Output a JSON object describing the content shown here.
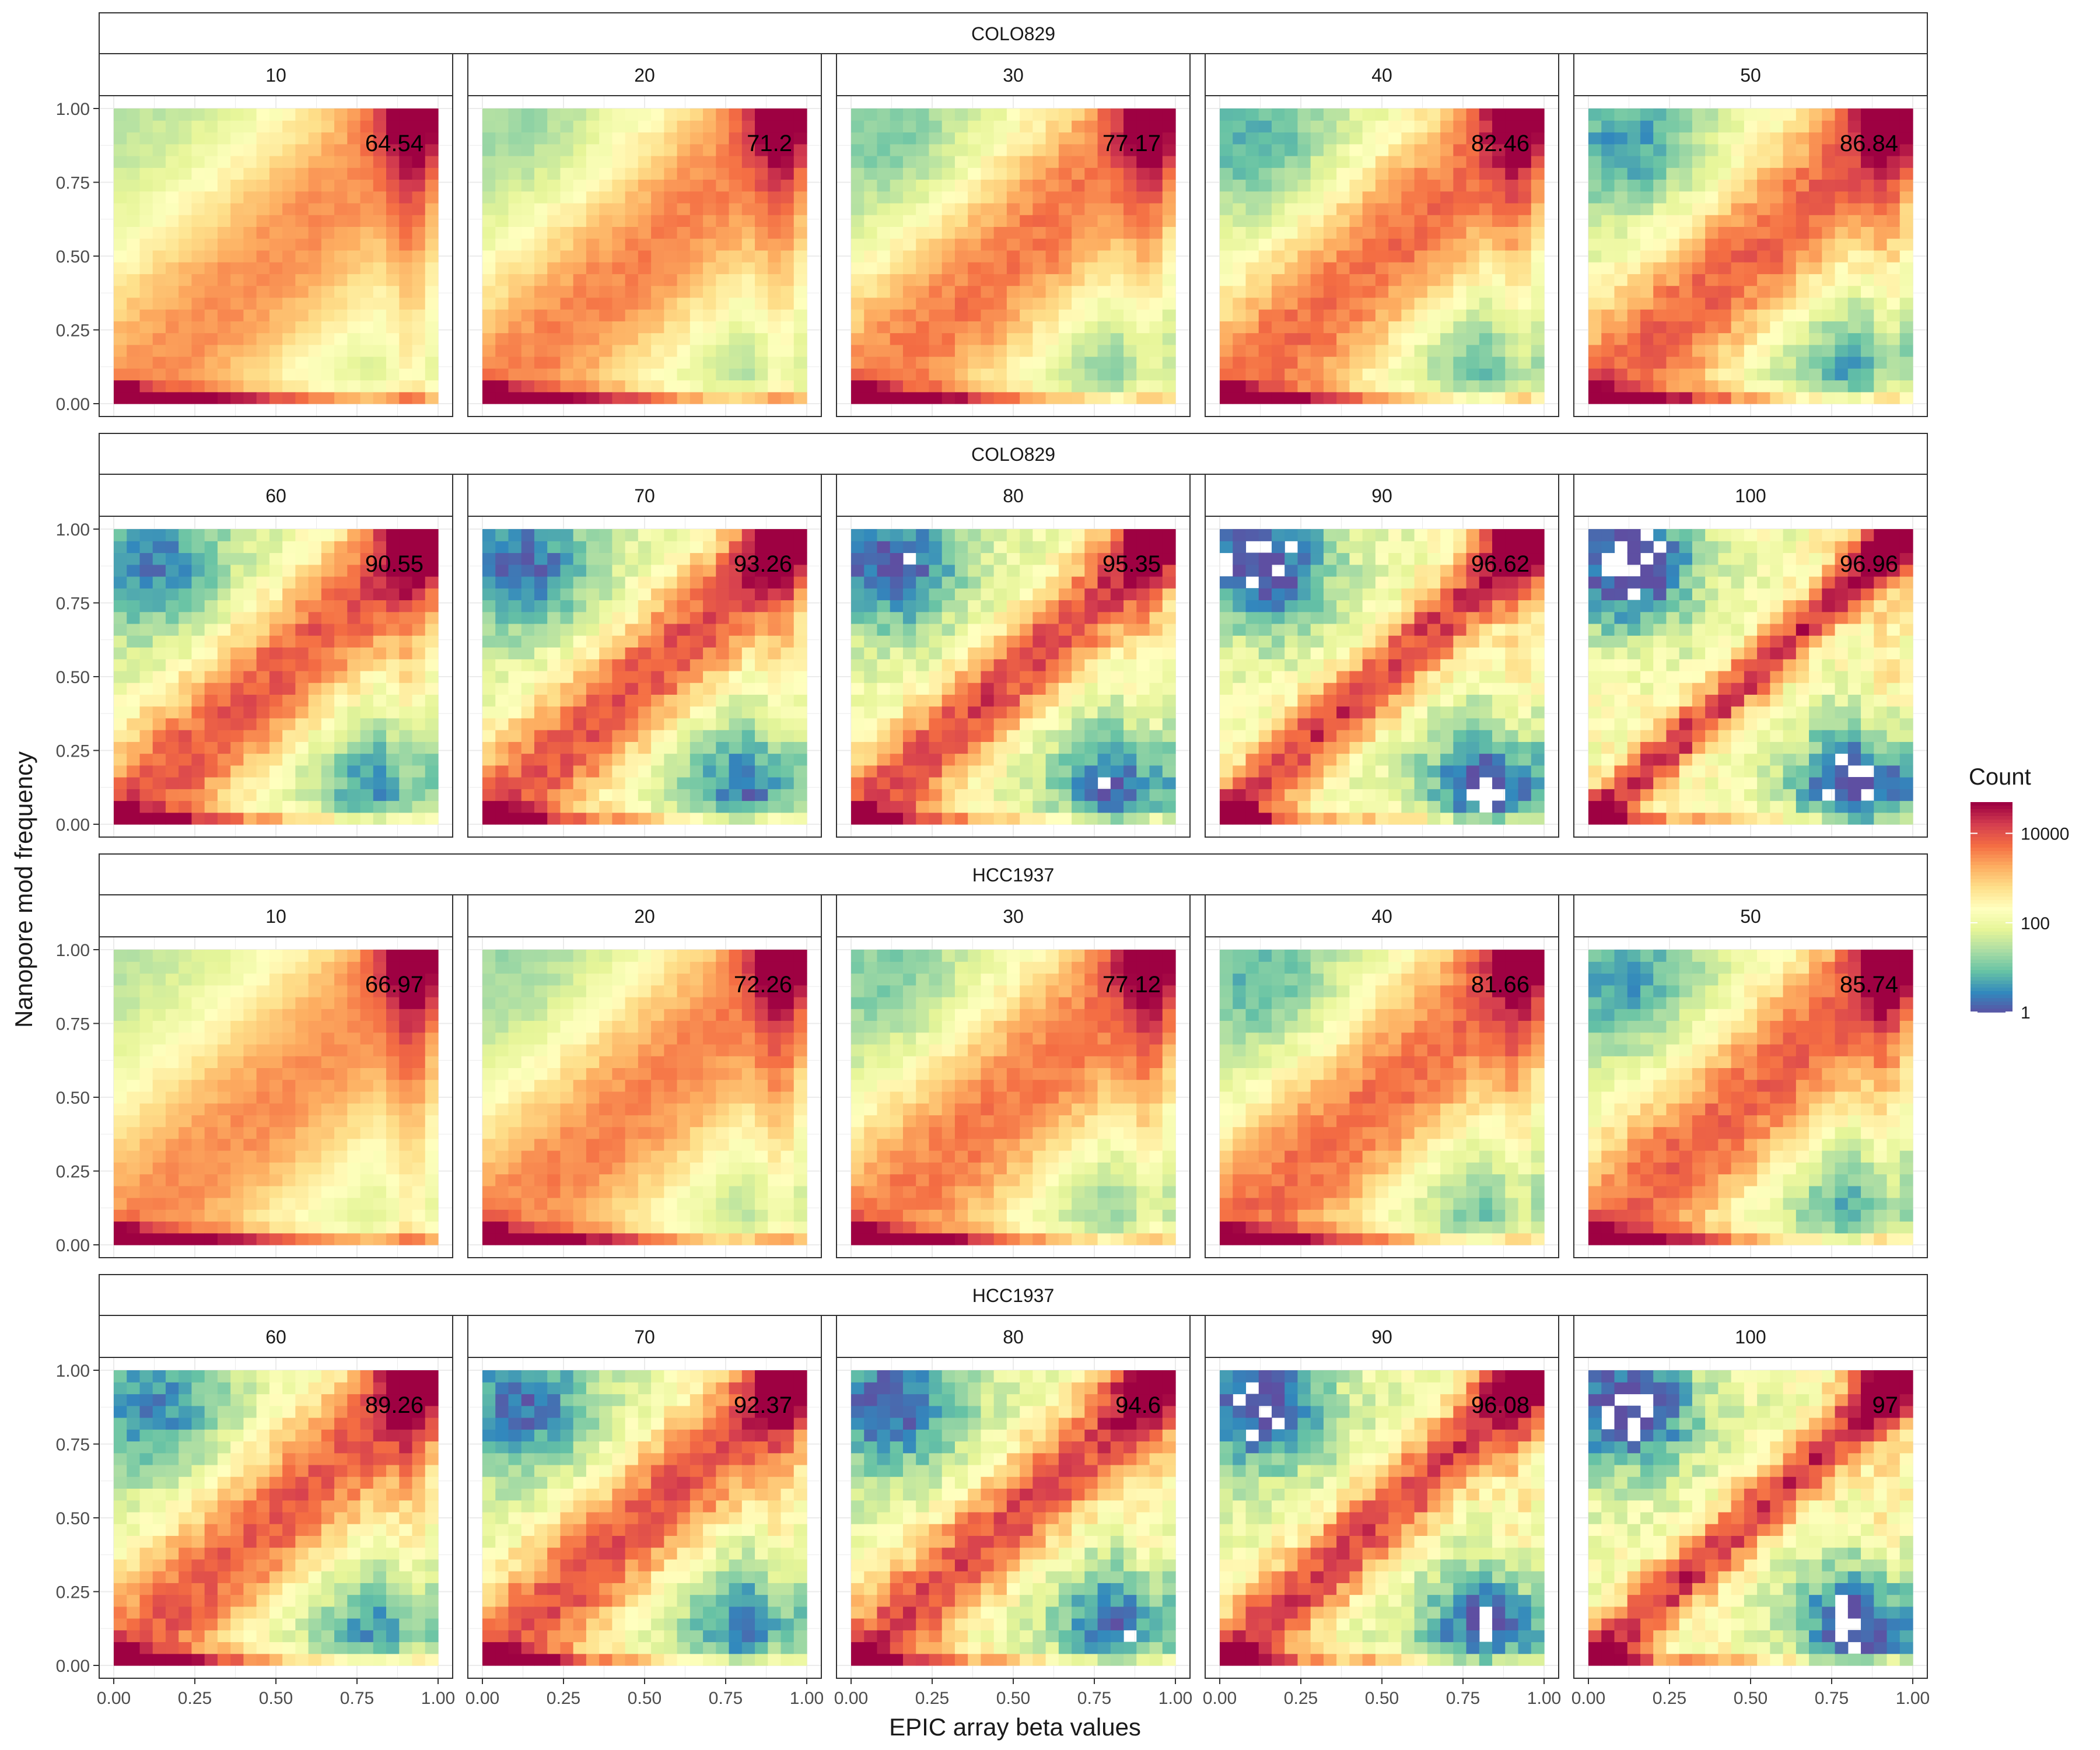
{
  "chart_data": {
    "type": "heatmap",
    "xlabel": "EPIC array beta values",
    "ylabel": "Nanopore mod frequency",
    "x_ticks": [
      "0.00",
      "0.25",
      "0.50",
      "0.75",
      "1.00"
    ],
    "y_ticks": [
      "0.00",
      "0.25",
      "0.50",
      "0.75",
      "1.00"
    ],
    "xlim": [
      0,
      1
    ],
    "ylim": [
      0,
      1
    ],
    "grid": true,
    "legend": {
      "title": "Count",
      "scale": "log10",
      "tick_labels": [
        "1",
        "100",
        "10000"
      ],
      "range": [
        1,
        50000
      ],
      "placement": "right",
      "colors": [
        "#5e4fa2",
        "#3288bd",
        "#66c2a5",
        "#abdda4",
        "#e6f598",
        "#ffffbf",
        "#fee08b",
        "#fdae61",
        "#f46d43",
        "#d53e4f",
        "#9e0142"
      ]
    },
    "rows": [
      {
        "group": "COLO829",
        "panels": [
          {
            "label": "10",
            "value": "64.54"
          },
          {
            "label": "20",
            "value": "71.2"
          },
          {
            "label": "30",
            "value": "77.17"
          },
          {
            "label": "40",
            "value": "82.46"
          },
          {
            "label": "50",
            "value": "86.84"
          }
        ]
      },
      {
        "group": "COLO829",
        "panels": [
          {
            "label": "60",
            "value": "90.55"
          },
          {
            "label": "70",
            "value": "93.26"
          },
          {
            "label": "80",
            "value": "95.35"
          },
          {
            "label": "90",
            "value": "96.62"
          },
          {
            "label": "100",
            "value": "96.96"
          }
        ]
      },
      {
        "group": "HCC1937",
        "panels": [
          {
            "label": "10",
            "value": "66.97"
          },
          {
            "label": "20",
            "value": "72.26"
          },
          {
            "label": "30",
            "value": "77.12"
          },
          {
            "label": "40",
            "value": "81.66"
          },
          {
            "label": "50",
            "value": "85.74"
          }
        ]
      },
      {
        "group": "HCC1937",
        "panels": [
          {
            "label": "60",
            "value": "89.26"
          },
          {
            "label": "70",
            "value": "92.37"
          },
          {
            "label": "80",
            "value": "94.6"
          },
          {
            "label": "90",
            "value": "96.08"
          },
          {
            "label": "100",
            "value": "97"
          }
        ]
      }
    ]
  }
}
